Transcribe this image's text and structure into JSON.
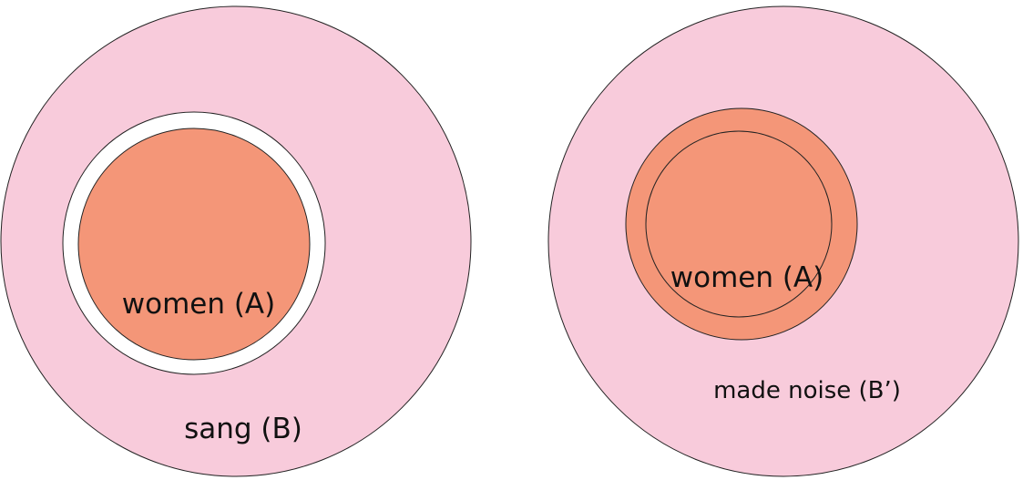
{
  "colors": {
    "outer_fill": "#f8cbdb",
    "inner_fill": "#f49678",
    "gap_fill": "#ffffff",
    "stroke": "#222222"
  },
  "left_diagram": {
    "inner_label": "women (A)",
    "outer_label": "sang (B)"
  },
  "right_diagram": {
    "inner_label": "women (A)",
    "outer_label": "made noise (B’)"
  }
}
